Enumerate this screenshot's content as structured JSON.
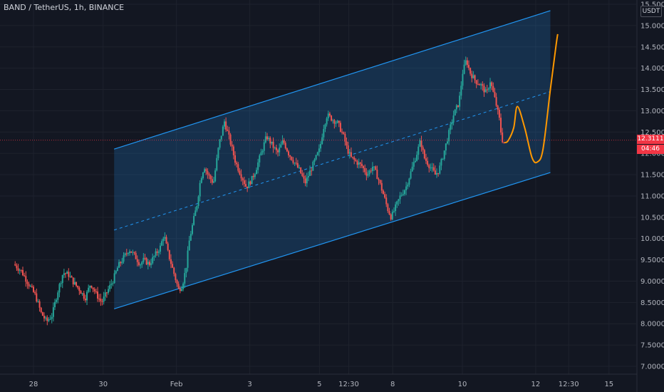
{
  "ticker": {
    "symbol": "BAND / TetherUS",
    "interval": "1h",
    "exchange": "BINANCE",
    "separator": ", "
  },
  "currency_label": "USDT",
  "current_price_label": "12.3111",
  "countdown_label": "04:46",
  "colors": {
    "background": "#131722",
    "up": "#26a69a",
    "down": "#ef5350",
    "channel": "#2196f3",
    "forecast": "#ff9800",
    "price_line": "#f23645"
  },
  "chart_data": {
    "type": "candlestick",
    "title": "",
    "y_axis": {
      "range": [
        6.85,
        15.5
      ],
      "ticks": [
        "15.5000",
        "15.0000",
        "14.5000",
        "14.0000",
        "13.5000",
        "13.0000",
        "12.5000",
        "12.0000",
        "11.5000",
        "11.0000",
        "10.5000",
        "10.0000",
        "9.5000",
        "9.0000",
        "8.5000",
        "8.0000",
        "7.5000",
        "7.0000"
      ],
      "tick_values": [
        15.5,
        15.0,
        14.5,
        14.0,
        13.5,
        13.0,
        12.5,
        12.0,
        11.5,
        11.0,
        10.5,
        10.0,
        9.5,
        9.0,
        8.5,
        8.0,
        7.5,
        7.0
      ]
    },
    "x_axis": {
      "range": [
        27.4,
        15.7
      ],
      "ticks": [
        {
          "label": "28",
          "value": 27.9
        },
        {
          "label": "30",
          "value": 29.8
        },
        {
          "label": "Feb",
          "value": 31.8
        },
        {
          "label": "3",
          "value": 33.8
        },
        {
          "label": "5",
          "value": 35.7
        },
        {
          "label": "12:30",
          "value": 36.5
        },
        {
          "label": "8",
          "value": 37.7
        },
        {
          "label": "10",
          "value": 39.6
        },
        {
          "label": "12",
          "value": 41.6
        },
        {
          "label": "12:30",
          "value": 42.5
        },
        {
          "label": "15",
          "value": 43.6
        }
      ]
    },
    "grid": true,
    "price_path": [
      [
        27.4,
        9.4
      ],
      [
        27.6,
        9.25
      ],
      [
        27.8,
        8.95
      ],
      [
        28.0,
        8.65
      ],
      [
        28.15,
        8.25
      ],
      [
        28.3,
        8.05
      ],
      [
        28.45,
        8.2
      ],
      [
        28.6,
        8.75
      ],
      [
        28.75,
        9.2
      ],
      [
        28.9,
        9.15
      ],
      [
        29.05,
        8.95
      ],
      [
        29.2,
        8.8
      ],
      [
        29.35,
        8.6
      ],
      [
        29.5,
        8.95
      ],
      [
        29.65,
        8.7
      ],
      [
        29.8,
        8.5
      ],
      [
        29.95,
        8.75
      ],
      [
        30.1,
        9.0
      ],
      [
        30.25,
        9.35
      ],
      [
        30.4,
        9.55
      ],
      [
        30.55,
        9.75
      ],
      [
        30.7,
        9.6
      ],
      [
        30.85,
        9.4
      ],
      [
        30.95,
        9.5
      ],
      [
        31.1,
        9.4
      ],
      [
        31.25,
        9.6
      ],
      [
        31.4,
        9.8
      ],
      [
        31.5,
        10.1
      ],
      [
        31.6,
        9.7
      ],
      [
        31.7,
        9.4
      ],
      [
        31.8,
        9.1
      ],
      [
        31.9,
        8.8
      ],
      [
        32.0,
        8.9
      ],
      [
        32.1,
        9.3
      ],
      [
        32.2,
        10.0
      ],
      [
        32.3,
        10.4
      ],
      [
        32.4,
        10.8
      ],
      [
        32.5,
        11.4
      ],
      [
        32.6,
        11.7
      ],
      [
        32.7,
        11.5
      ],
      [
        32.85,
        11.3
      ],
      [
        33.0,
        12.2
      ],
      [
        33.15,
        12.75
      ],
      [
        33.3,
        12.3
      ],
      [
        33.45,
        11.8
      ],
      [
        33.6,
        11.5
      ],
      [
        33.75,
        11.2
      ],
      [
        33.9,
        11.4
      ],
      [
        34.0,
        11.6
      ],
      [
        34.15,
        12.0
      ],
      [
        34.3,
        12.4
      ],
      [
        34.45,
        12.2
      ],
      [
        34.6,
        12.0
      ],
      [
        34.75,
        12.3
      ],
      [
        34.9,
        12.0
      ],
      [
        35.05,
        11.8
      ],
      [
        35.2,
        11.6
      ],
      [
        35.35,
        11.3
      ],
      [
        35.5,
        11.6
      ],
      [
        35.65,
        11.9
      ],
      [
        35.75,
        12.1
      ],
      [
        35.85,
        12.6
      ],
      [
        35.95,
        12.9
      ],
      [
        36.1,
        12.8
      ],
      [
        36.25,
        12.7
      ],
      [
        36.4,
        12.4
      ],
      [
        36.5,
        12.1
      ],
      [
        36.6,
        11.9
      ],
      [
        36.75,
        11.8
      ],
      [
        36.9,
        11.7
      ],
      [
        37.05,
        11.5
      ],
      [
        37.2,
        11.7
      ],
      [
        37.35,
        11.4
      ],
      [
        37.5,
        11.0
      ],
      [
        37.6,
        10.7
      ],
      [
        37.7,
        10.5
      ],
      [
        37.8,
        10.7
      ],
      [
        37.95,
        11.0
      ],
      [
        38.1,
        11.2
      ],
      [
        38.25,
        11.6
      ],
      [
        38.4,
        12.0
      ],
      [
        38.5,
        12.3
      ],
      [
        38.6,
        11.9
      ],
      [
        38.75,
        11.7
      ],
      [
        38.9,
        11.5
      ],
      [
        39.0,
        11.6
      ],
      [
        39.1,
        11.9
      ],
      [
        39.25,
        12.4
      ],
      [
        39.4,
        12.9
      ],
      [
        39.55,
        13.2
      ],
      [
        39.65,
        13.9
      ],
      [
        39.75,
        14.2
      ],
      [
        39.85,
        13.9
      ],
      [
        40.0,
        13.7
      ],
      [
        40.15,
        13.6
      ],
      [
        40.3,
        13.4
      ],
      [
        40.4,
        13.7
      ],
      [
        40.55,
        13.2
      ],
      [
        40.65,
        12.8
      ],
      [
        40.7,
        12.45
      ],
      [
        40.75,
        12.25
      ]
    ],
    "channel": {
      "upper": [
        [
          30.1,
          12.1
        ],
        [
          42.0,
          15.35
        ]
      ],
      "lower": [
        [
          30.1,
          8.35
        ],
        [
          42.0,
          11.55
        ]
      ],
      "middle": [
        [
          30.1,
          10.2
        ],
        [
          42.0,
          13.45
        ]
      ]
    },
    "forecast": [
      [
        40.75,
        12.25
      ],
      [
        40.85,
        12.3
      ],
      [
        41.0,
        12.6
      ],
      [
        41.1,
        13.1
      ],
      [
        41.3,
        12.6
      ],
      [
        41.5,
        11.9
      ],
      [
        41.65,
        11.8
      ],
      [
        41.8,
        12.1
      ],
      [
        42.0,
        13.5
      ],
      [
        42.15,
        14.5
      ],
      [
        42.2,
        14.8
      ]
    ],
    "current_price": 12.3111
  }
}
